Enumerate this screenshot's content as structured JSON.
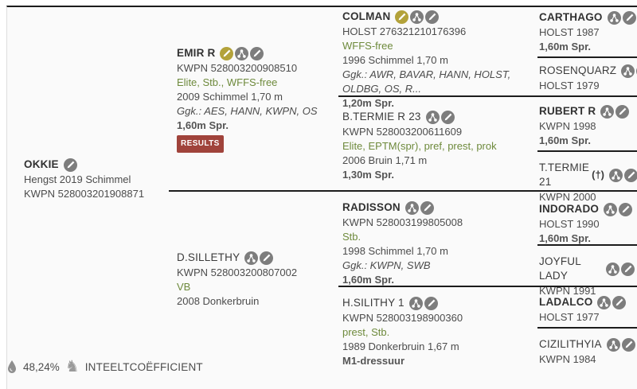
{
  "pedigree": {
    "okkie": {
      "name": "OKKIE",
      "desc": "Hengst 2019 Schimmel",
      "reg": "KWPN 528003201908871",
      "icons": [
        "pencil-icon"
      ]
    },
    "emir_r": {
      "name": "EMIR R",
      "reg": "KWPN 528003200908510",
      "predicates": "Elite, Stb., WFFS-free",
      "birth": "2009 Schimmel 1,70 m",
      "ggk": "Ggk.: AES, HANN, KWPN, OS",
      "sport": "1,60m Spr.",
      "results_label": "RESULTS",
      "icons": [
        "gold-pencil-icon",
        "offspring-icon",
        "pencil-icon"
      ]
    },
    "d_sillethy": {
      "name": "D.SILLETHY",
      "reg": "KWPN 528003200807002",
      "predicates": "VB",
      "birth": "2008 Donkerbruin",
      "icons": [
        "offspring-icon",
        "pencil-icon"
      ]
    },
    "colman": {
      "name": "COLMAN",
      "reg": "HOLST 276321210176396",
      "predicates": "WFFS-free",
      "birth": "1996 Schimmel 1,70 m",
      "ggk": "Ggk.: AWR, BAVAR, HANN, HOLST, OLDBG, OS, R...",
      "sport": "1,20m Spr.",
      "icons": [
        "gold-pencil-icon",
        "offspring-icon",
        "pencil-icon"
      ]
    },
    "b_termie": {
      "name": "B.TERMIE R 23",
      "reg": "KWPN 528003200611609",
      "predicates": "Elite, EPTM(spr), pref, prest, prok",
      "birth": "2006 Bruin 1,71 m",
      "sport": "1,30m Spr.",
      "icons": [
        "offspring-icon",
        "pencil-icon"
      ]
    },
    "radisson": {
      "name": "RADISSON",
      "reg": "KWPN 528003199805008",
      "predicates": "Stb.",
      "birth": "1998 Schimmel 1,70 m",
      "ggk": "Ggk.: KWPN, SWB",
      "sport": "1,60m Spr.",
      "icons": [
        "offspring-icon",
        "pencil-icon"
      ]
    },
    "h_silithy": {
      "name": "H.SILITHY 1",
      "reg": "KWPN 528003198900360",
      "predicates": "prest, Stb.",
      "birth": "1989 Donkerbruin 1,67 m",
      "sport": "M1-dressuur",
      "icons": [
        "offspring-icon",
        "pencil-icon"
      ]
    },
    "carthago": {
      "name": "CARTHAGO",
      "reg": "HOLST 1987",
      "sport": "1,60m Spr.",
      "icons": [
        "offspring-icon",
        "pencil-icon"
      ]
    },
    "rosenquarz": {
      "name": "ROSENQUARZ",
      "reg": "HOLST 1979",
      "icons": [
        "offspring-icon",
        "pencil-icon"
      ]
    },
    "rubert_r": {
      "name": "RUBERT R",
      "reg": "KWPN 1998",
      "sport": "1,60m Spr.",
      "icons": [
        "offspring-icon",
        "pencil-icon"
      ]
    },
    "t_termie": {
      "name": "T.TERMIE 21",
      "deceased": "(†)",
      "reg": "KWPN 2000",
      "icons": [
        "offspring-icon",
        "pencil-icon"
      ]
    },
    "indorado": {
      "name": "INDORADO",
      "reg": "HOLST 1990",
      "sport": "1,60m Spr.",
      "icons": [
        "offspring-icon",
        "pencil-icon"
      ]
    },
    "joyful_lady": {
      "name": "JOYFUL LADY",
      "reg": "KWPN 1991",
      "icons": [
        "offspring-icon",
        "pencil-icon"
      ]
    },
    "ladalco": {
      "name": "LADALCO",
      "reg": "HOLST 1977",
      "icons": [
        "offspring-icon",
        "pencil-icon"
      ]
    },
    "cizilithyia": {
      "name": "CIZILITHYIA",
      "reg": "KWPN 1984",
      "icons": [
        "offspring-icon",
        "pencil-icon"
      ]
    }
  },
  "footer": {
    "inbreeding_value": "48,24%",
    "inbreeding_label": "INTEELTCOËFFICIENT",
    "icons": [
      "drop-icon",
      "horse-icon"
    ]
  },
  "colors": {
    "accent_gold": "#b3a23a",
    "icon_gray": "#7d7d7d",
    "predicate_green": "#6e8a3c",
    "results_red": "#a0433b",
    "line_dark": "#1c1c1c"
  }
}
